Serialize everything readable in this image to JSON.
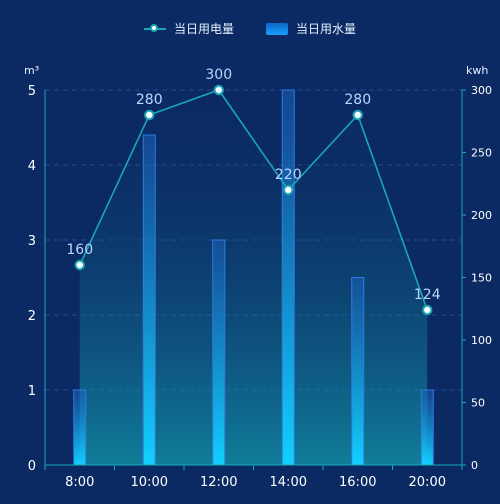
{
  "legend": [
    {
      "name": "当日用电量"
    },
    {
      "name": "当日用水量"
    }
  ],
  "colors": {
    "background": "#0b2a63",
    "axis": "#1aa6b7",
    "grid": "#2a5aa5",
    "tick_text": "#ffffff",
    "label_text": "#b7d7ff",
    "line": "#1aa6b7",
    "bar_top": "#1b79ff",
    "bar_bottom": "#0fd0ff"
  },
  "chart_data": {
    "type": "bar",
    "categories": [
      "8:00",
      "10:00",
      "12:00",
      "14:00",
      "16:00",
      "20:00"
    ],
    "left_axis": {
      "unit": "m³",
      "ylim": [
        0,
        5
      ],
      "ticks": [
        0,
        1,
        2,
        3,
        4,
        5
      ]
    },
    "right_axis": {
      "unit": "kwh",
      "ylim": [
        0,
        300
      ],
      "ticks": [
        0,
        50,
        100,
        150,
        200,
        250,
        300
      ]
    },
    "series": [
      {
        "name": "当日用电量",
        "type": "line",
        "axis": "right",
        "values": [
          160,
          280,
          300,
          220,
          280,
          124
        ],
        "labels": [
          "160",
          "280",
          "300",
          "220",
          "280",
          "124"
        ]
      },
      {
        "name": "当日用水量",
        "type": "bar",
        "axis": "left",
        "values": [
          1,
          4.4,
          3,
          5,
          2.5,
          1
        ]
      }
    ],
    "grid": true,
    "legend_position": "top-center"
  }
}
